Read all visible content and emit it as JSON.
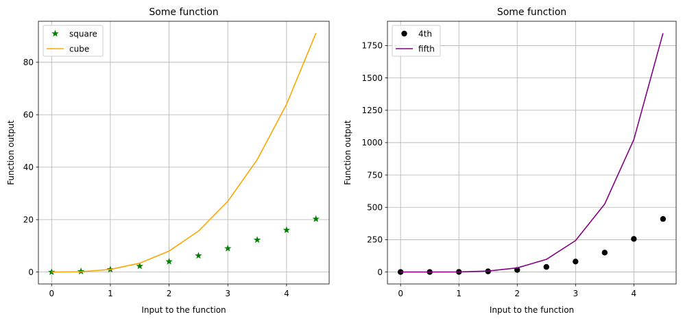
{
  "chart_data": [
    {
      "type": "line",
      "title": "Some function",
      "xlabel": "Input to the function",
      "ylabel": "Function output",
      "xlim": [
        -0.225,
        4.725
      ],
      "ylim": [
        -4.55,
        95.65
      ],
      "xticks": [
        0,
        1,
        2,
        3,
        4
      ],
      "yticks": [
        0,
        20,
        40,
        60,
        80
      ],
      "grid": true,
      "legend_position": "top-left",
      "x": [
        0,
        0.5,
        1,
        1.5,
        2,
        2.5,
        3,
        3.5,
        4,
        4.5
      ],
      "series": [
        {
          "name": "square",
          "style": "marker",
          "marker": "star",
          "color": "#008000",
          "values": [
            0,
            0.25,
            1,
            2.25,
            4,
            6.25,
            9,
            12.25,
            16,
            20.25
          ]
        },
        {
          "name": "cube",
          "style": "line",
          "color": "#FFA500",
          "values": [
            0,
            0.125,
            1,
            3.375,
            8,
            15.625,
            27,
            42.875,
            64,
            91.125
          ]
        }
      ]
    },
    {
      "type": "line",
      "title": "Some function",
      "xlabel": "Input to the function",
      "ylabel": "Function output",
      "xlim": [
        -0.225,
        4.725
      ],
      "ylim": [
        -92.3,
        1937.8
      ],
      "xticks": [
        0,
        1,
        2,
        3,
        4
      ],
      "yticks": [
        0,
        250,
        500,
        750,
        1000,
        1250,
        1500,
        1750
      ],
      "grid": true,
      "legend_position": "top-left",
      "x": [
        0,
        0.5,
        1,
        1.5,
        2,
        2.5,
        3,
        3.5,
        4,
        4.5
      ],
      "series": [
        {
          "name": "4th",
          "style": "marker",
          "marker": "circle",
          "color": "#000000",
          "values": [
            0,
            0.0625,
            1,
            5.0625,
            16,
            39.0625,
            81,
            150.0625,
            256,
            410.0625
          ]
        },
        {
          "name": "fifth",
          "style": "line",
          "color": "#800080",
          "values": [
            0,
            0.03125,
            1,
            7.59375,
            32,
            97.65625,
            243,
            525.21875,
            1024,
            1845.28125
          ]
        }
      ]
    }
  ]
}
